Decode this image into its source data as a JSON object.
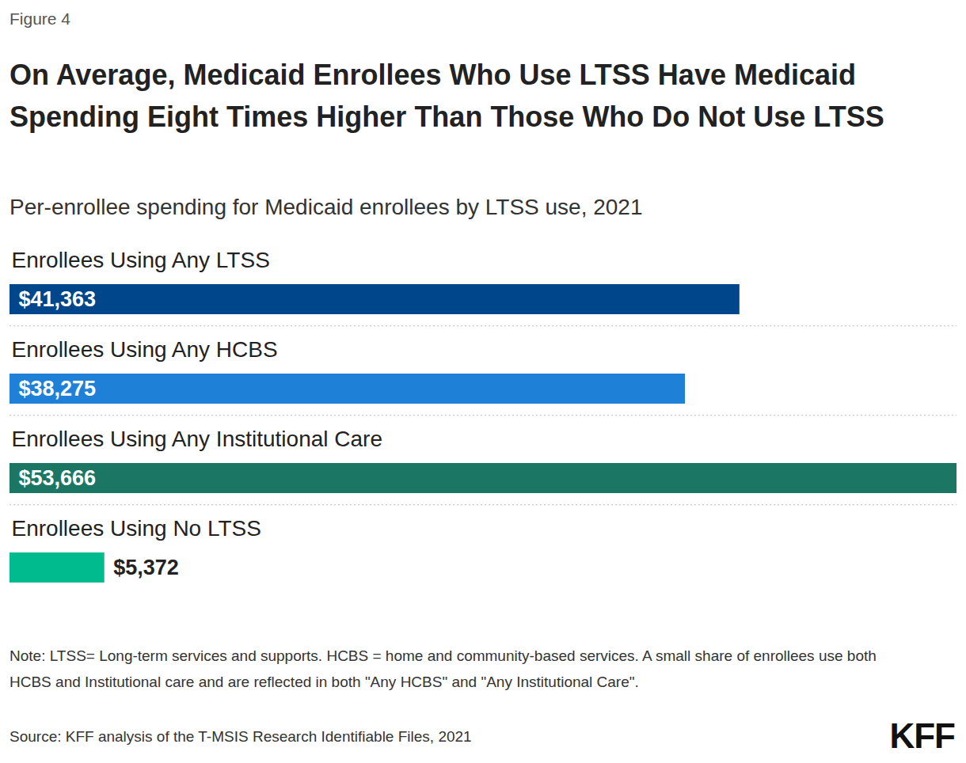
{
  "figure_label": "Figure 4",
  "logo": "KFF",
  "chart_data": {
    "type": "bar",
    "orientation": "horizontal",
    "title": "On Average, Medicaid Enrollees Who Use LTSS Have Medicaid Spending Eight Times Higher Than Those Who Do Not Use LTSS",
    "subtitle": "Per-enrollee spending for Medicaid enrollees by LTSS use, 2021",
    "categories": [
      "Enrollees Using Any LTSS",
      "Enrollees Using Any HCBS",
      "Enrollees Using Any Institutional Care",
      "Enrollees Using No LTSS"
    ],
    "values": [
      41363,
      38275,
      53666,
      5372
    ],
    "value_labels": [
      "$41,363",
      "$38,275",
      "$53,666",
      "$5,372"
    ],
    "colors": [
      "#00468b",
      "#1e80d7",
      "#1b7763",
      "#00bb8d"
    ],
    "xlim": [
      0,
      53666
    ],
    "data_labels": true,
    "tick_labels": false,
    "grid": false,
    "note": "Note: LTSS= Long-term services and supports. HCBS = home and community-based services. A small share of enrollees use both HCBS and Institutional care and are reflected in both \"Any HCBS\" and \"Any Institutional Care\".",
    "source": "Source: KFF analysis of the T-MSIS Research Identifiable Files, 2021"
  }
}
